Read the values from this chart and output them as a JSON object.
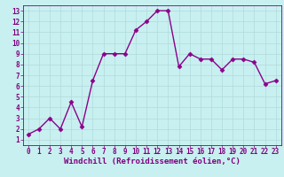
{
  "x": [
    0,
    1,
    2,
    3,
    4,
    5,
    6,
    7,
    8,
    9,
    10,
    11,
    12,
    13,
    14,
    15,
    16,
    17,
    18,
    19,
    20,
    21,
    22,
    23
  ],
  "y": [
    1.5,
    2.0,
    3.0,
    2.0,
    4.5,
    2.2,
    6.5,
    9.0,
    9.0,
    9.0,
    11.2,
    12.0,
    13.0,
    13.0,
    7.8,
    9.0,
    8.5,
    8.5,
    7.5,
    8.5,
    8.5,
    8.2,
    6.2,
    6.5
  ],
  "line_color": "#8B008B",
  "marker": "D",
  "marker_size": 2.5,
  "background_color": "#c8f0f0",
  "xlabel": "Windchill (Refroidissement éolien,°C)",
  "ylabel": "",
  "xlim": [
    -0.5,
    23.5
  ],
  "ylim": [
    0.5,
    13.5
  ],
  "xticks": [
    0,
    1,
    2,
    3,
    4,
    5,
    6,
    7,
    8,
    9,
    10,
    11,
    12,
    13,
    14,
    15,
    16,
    17,
    18,
    19,
    20,
    21,
    22,
    23
  ],
  "yticks": [
    1,
    2,
    3,
    4,
    5,
    6,
    7,
    8,
    9,
    10,
    11,
    12,
    13
  ],
  "grid_color": "#b0dada",
  "tick_color": "#800080",
  "xlabel_color": "#800080",
  "xlabel_fontsize": 6.5,
  "tick_fontsize": 5.5,
  "line_width": 1.0
}
